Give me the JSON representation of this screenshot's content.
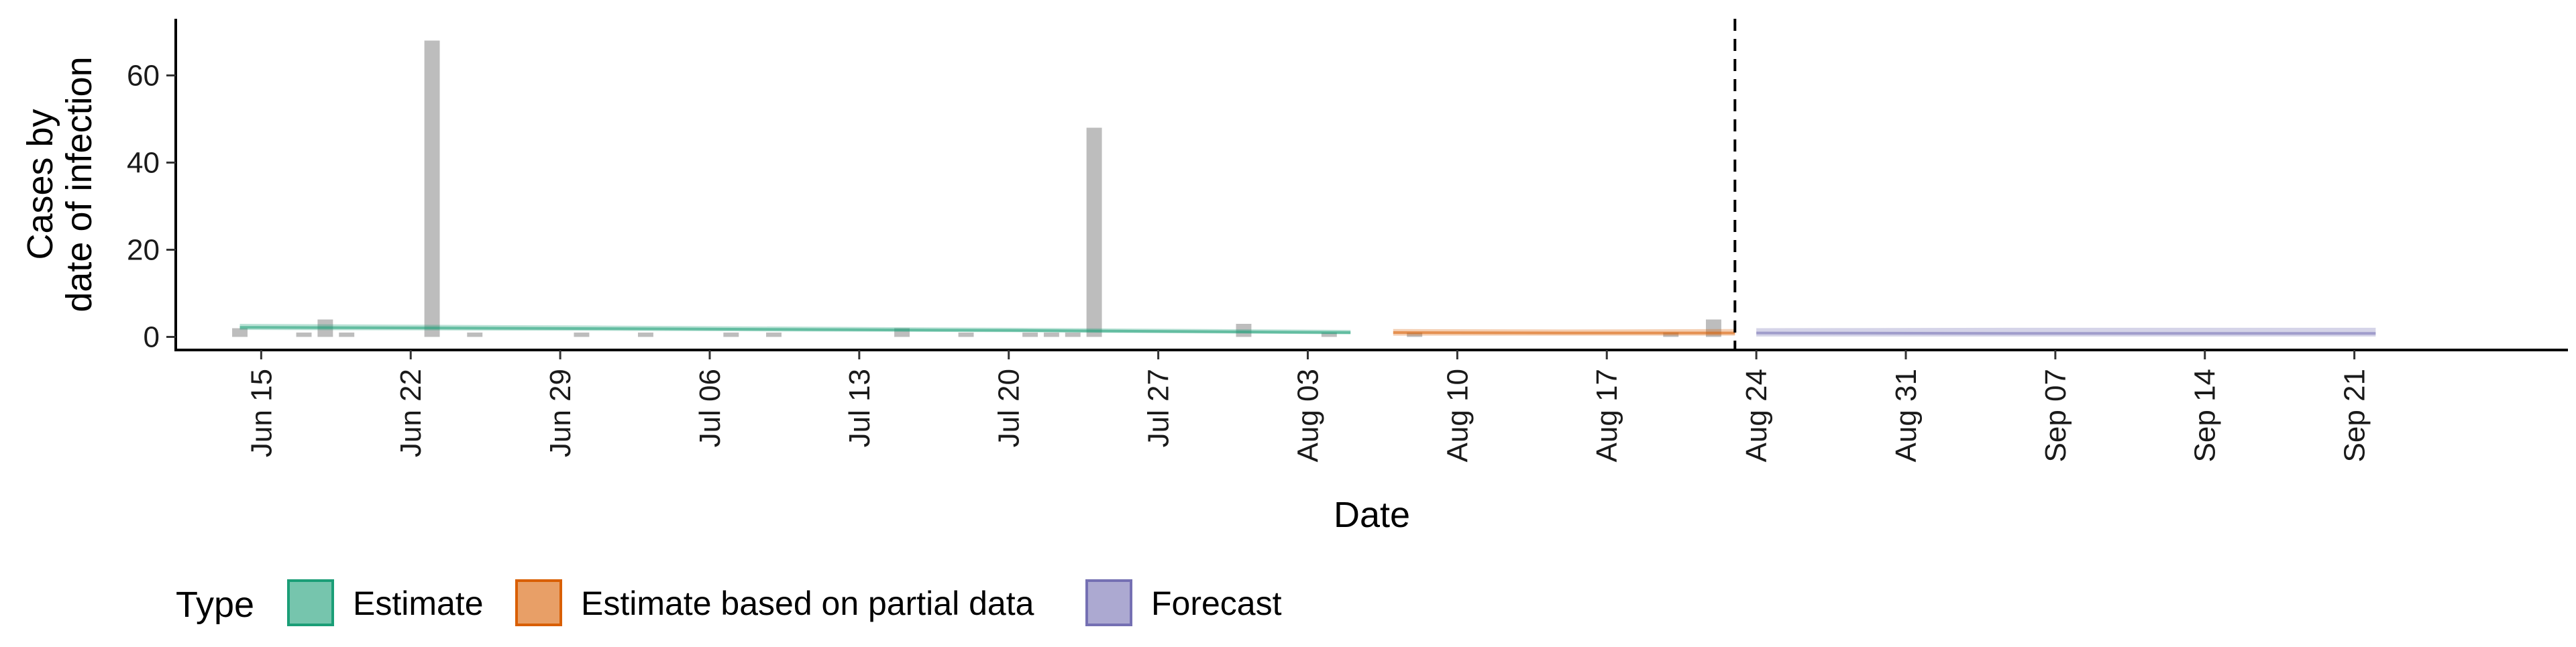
{
  "chart_data": {
    "type": "bar",
    "xlabel": "Date",
    "ylabel_lines": [
      "Cases by",
      "date of infection"
    ],
    "ylim": [
      -3,
      73
    ],
    "y_ticks": [
      0,
      20,
      40,
      60
    ],
    "x_start": "2020-06-11",
    "x_end": "2020-10-01",
    "x_ticks": [
      "Jun 15",
      "Jun 22",
      "Jun 29",
      "Jul 06",
      "Jul 13",
      "Jul 20",
      "Jul 27",
      "Aug 03",
      "Aug 10",
      "Aug 17",
      "Aug 24",
      "Aug 31",
      "Sep 07",
      "Sep 14",
      "Sep 21"
    ],
    "x_tick_dates": [
      "2020-06-15",
      "2020-06-22",
      "2020-06-29",
      "2020-07-06",
      "2020-07-13",
      "2020-07-20",
      "2020-07-27",
      "2020-08-03",
      "2020-08-10",
      "2020-08-17",
      "2020-08-24",
      "2020-08-31",
      "2020-09-07",
      "2020-09-14",
      "2020-09-21"
    ],
    "cases_by_date": [
      {
        "date": "2020-06-14",
        "value": 2
      },
      {
        "date": "2020-06-17",
        "value": 1
      },
      {
        "date": "2020-06-18",
        "value": 4
      },
      {
        "date": "2020-06-19",
        "value": 1
      },
      {
        "date": "2020-06-23",
        "value": 68
      },
      {
        "date": "2020-06-25",
        "value": 1
      },
      {
        "date": "2020-06-30",
        "value": 1
      },
      {
        "date": "2020-07-03",
        "value": 1
      },
      {
        "date": "2020-07-07",
        "value": 1
      },
      {
        "date": "2020-07-09",
        "value": 1
      },
      {
        "date": "2020-07-15",
        "value": 2
      },
      {
        "date": "2020-07-18",
        "value": 1
      },
      {
        "date": "2020-07-21",
        "value": 1
      },
      {
        "date": "2020-07-22",
        "value": 1
      },
      {
        "date": "2020-07-23",
        "value": 1
      },
      {
        "date": "2020-07-24",
        "value": 48
      },
      {
        "date": "2020-07-31",
        "value": 3
      },
      {
        "date": "2020-08-04",
        "value": 1
      },
      {
        "date": "2020-08-08",
        "value": 1
      },
      {
        "date": "2020-08-20",
        "value": 1
      },
      {
        "date": "2020-08-22",
        "value": 4
      }
    ],
    "series": [
      {
        "name": "Estimate",
        "color": "#1b9e77",
        "x": [
          "2020-06-14",
          "2020-07-01",
          "2020-07-20",
          "2020-08-05"
        ],
        "median": [
          2.2,
          1.9,
          1.5,
          1.0
        ],
        "lower": [
          1.6,
          1.4,
          1.1,
          0.6
        ],
        "upper": [
          3.0,
          2.6,
          2.1,
          1.6
        ]
      },
      {
        "name": "Estimate based on partial data",
        "color": "#d95f02",
        "x": [
          "2020-08-07",
          "2020-08-15",
          "2020-08-23"
        ],
        "median": [
          1.0,
          0.9,
          0.9
        ],
        "lower": [
          0.3,
          0.3,
          0.3
        ],
        "upper": [
          1.8,
          1.7,
          1.8
        ]
      },
      {
        "name": "Forecast",
        "color": "#7570b3",
        "x": [
          "2020-08-24",
          "2020-09-05",
          "2020-09-22"
        ],
        "median": [
          0.9,
          0.8,
          0.8
        ],
        "lower": [
          0.1,
          0.1,
          0.1
        ],
        "upper": [
          2.0,
          2.1,
          2.1
        ]
      }
    ],
    "forecast_line_date": "2020-08-23",
    "legend": {
      "title": "Type",
      "position": "bottom",
      "items": [
        {
          "label": "Estimate",
          "color": "#1b9e77"
        },
        {
          "label": "Estimate based on partial data",
          "color": "#d95f02"
        },
        {
          "label": "Forecast",
          "color": "#7570b3"
        }
      ]
    }
  }
}
